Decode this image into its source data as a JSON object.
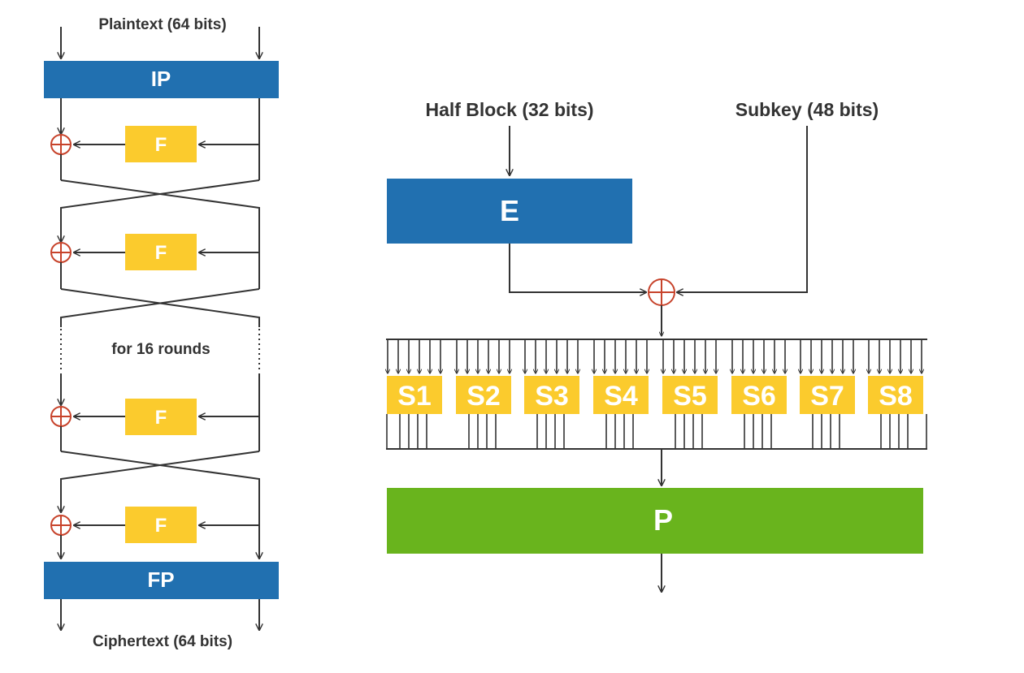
{
  "feistel": {
    "input_label": "Plaintext (64 bits)",
    "initial_perm_label": "IP",
    "f_labels": [
      "F",
      "F",
      "F",
      "F"
    ],
    "rounds_label": "for 16 rounds",
    "final_perm_label": "FP",
    "output_label": "Ciphertext (64 bits)"
  },
  "f_function": {
    "half_block_label": "Half Block (32 bits)",
    "subkey_label": "Subkey (48 bits)",
    "expansion_label": "E",
    "sboxes": [
      "S1",
      "S2",
      "S3",
      "S4",
      "S5",
      "S6",
      "S7",
      "S8"
    ],
    "permutation_label": "P"
  },
  "colors": {
    "blue": "#2170b0",
    "yellow": "#fbcb2d",
    "green": "#69b41d",
    "xor_red": "#c7432b",
    "line": "#333333",
    "text": "#333333",
    "white": "#ffffff"
  }
}
